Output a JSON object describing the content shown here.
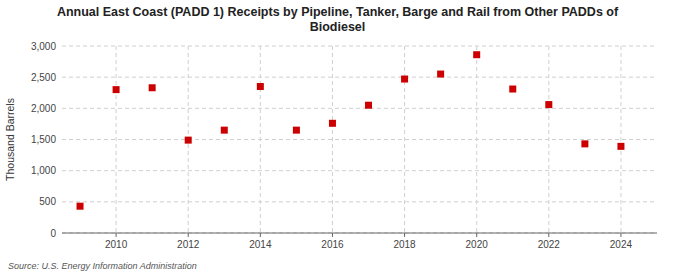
{
  "chart_data": {
    "type": "scatter",
    "title": "Annual East Coast (PADD 1) Receipts by Pipeline, Tanker, Barge and Rail from Other PADDs of\nBiodiesel",
    "ylabel": "Thousand Barrels",
    "source": "Source: U.S. Energy Information Administration",
    "x": [
      2009,
      2010,
      2011,
      2012,
      2013,
      2014,
      2015,
      2016,
      2017,
      2018,
      2019,
      2020,
      2021,
      2022,
      2023,
      2024
    ],
    "values": [
      430,
      2300,
      2330,
      1490,
      1650,
      2350,
      1650,
      1760,
      2050,
      2470,
      2550,
      2860,
      2310,
      2060,
      1430,
      1390
    ],
    "color": "#cc0000",
    "marker": "square",
    "grid": true,
    "xlim": [
      2008.5,
      2025.0
    ],
    "xticks": [
      2010,
      2012,
      2014,
      2016,
      2018,
      2020,
      2022,
      2024
    ],
    "ylim": [
      0,
      3000
    ],
    "yticks": [
      0,
      500,
      {
        "value": 1000,
        "label": "1,000"
      },
      {
        "value": 1500,
        "label": "1,500"
      },
      {
        "value": 2000,
        "label": "2,000"
      },
      {
        "value": 2500,
        "label": "2,500"
      },
      {
        "value": 3000,
        "label": "3,000"
      }
    ]
  }
}
